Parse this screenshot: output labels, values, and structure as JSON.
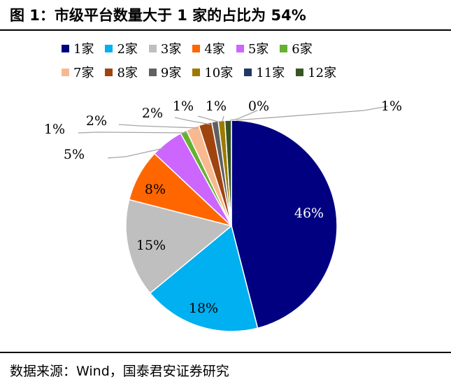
{
  "title": "图 1：市级平台数量大于 1 家的占比为 54%",
  "source": "数据来源：Wind，国泰君安证券研究",
  "chart_data": {
    "type": "pie",
    "categories": [
      "1家",
      "2家",
      "3家",
      "4家",
      "5家",
      "6家",
      "7家",
      "8家",
      "9家",
      "10家",
      "11家",
      "12家"
    ],
    "values": [
      46,
      18,
      15,
      8,
      5,
      1,
      2,
      2,
      1,
      1,
      0,
      1
    ],
    "labels": [
      "46%",
      "18%",
      "15%",
      "8%",
      "5%",
      "1%",
      "2%",
      "2%",
      "1%",
      "1%",
      "0%",
      "1%"
    ],
    "colors": [
      "#000080",
      "#00b0f0",
      "#bfbfbf",
      "#ff6600",
      "#cc66ff",
      "#66b032",
      "#f8b98f",
      "#a0440f",
      "#606060",
      "#9c7a00",
      "#1f3864",
      "#375623"
    ],
    "legend_position": "top"
  }
}
